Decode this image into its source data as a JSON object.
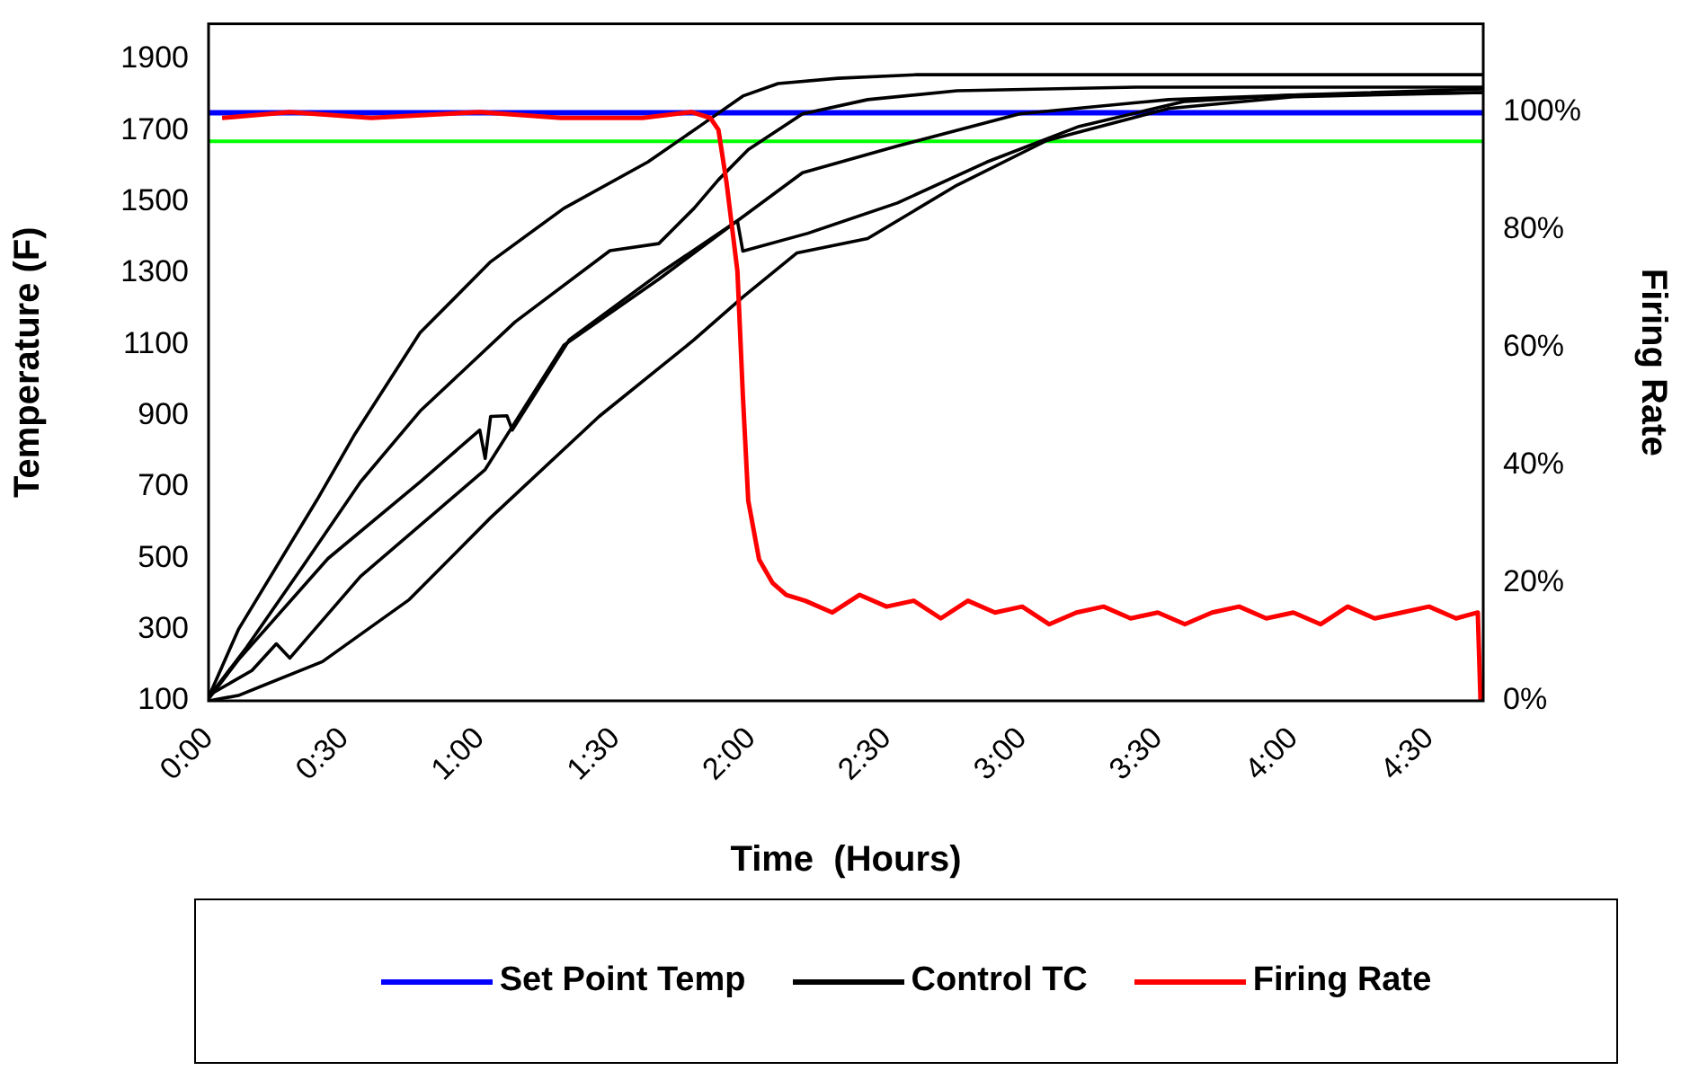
{
  "chart_data": {
    "type": "line",
    "xlabel": "Time  (Hours)",
    "ylabel": "Temperature (F)",
    "y2label": "Firing Rate",
    "xlim": [
      0,
      4.7
    ],
    "ylim": [
      100,
      2000
    ],
    "y2lim": [
      0,
      115
    ],
    "xticks": [
      {
        "value": 0,
        "label": "0:00"
      },
      {
        "value": 0.5,
        "label": "0:30"
      },
      {
        "value": 1,
        "label": "1:00"
      },
      {
        "value": 1.5,
        "label": "1:30"
      },
      {
        "value": 2,
        "label": "2:00"
      },
      {
        "value": 2.5,
        "label": "2:30"
      },
      {
        "value": 3,
        "label": "3:00"
      },
      {
        "value": 3.5,
        "label": "3:30"
      },
      {
        "value": 4,
        "label": "4:00"
      },
      {
        "value": 4.5,
        "label": "4:30"
      }
    ],
    "yticks": [
      100,
      300,
      500,
      700,
      900,
      1100,
      1300,
      1500,
      1700,
      1900
    ],
    "y2ticks": [
      {
        "value": 0,
        "label": "0%"
      },
      {
        "value": 20,
        "label": "20%"
      },
      {
        "value": 40,
        "label": "40%"
      },
      {
        "value": 60,
        "label": "60%"
      },
      {
        "value": 80,
        "label": "80%"
      },
      {
        "value": 100,
        "label": "100%"
      }
    ],
    "legend": "bottom",
    "ref_lines": [
      {
        "axis": "y",
        "value": 1670,
        "color": "#00ff00"
      }
    ],
    "series": [
      {
        "name": "Set Point Temp",
        "color": "#0000ff",
        "x": [
          0,
          4.7
        ],
        "values": [
          1750,
          1750
        ]
      },
      {
        "name": "Control TC",
        "color": "#000000",
        "x": [
          0,
          0.11,
          0.4,
          0.54,
          0.78,
          1.04,
          1.31,
          1.62,
          1.81,
          1.97,
          2.1,
          2.32,
          2.61,
          3.0,
          3.5,
          4.0,
          4.7
        ],
        "values": [
          110,
          300,
          664,
          849,
          1133,
          1332,
          1482,
          1612,
          1712,
          1797,
          1832,
          1847,
          1857,
          1857,
          1857,
          1857,
          1857
        ]
      },
      {
        "color": "#000000",
        "x": [
          0,
          0.14,
          0.35,
          0.56,
          0.78,
          1.13,
          1.48,
          1.66,
          1.79,
          1.88,
          1.99,
          2.19,
          2.43,
          2.76,
          3.42,
          4.0,
          4.7
        ],
        "values": [
          110,
          250,
          480,
          714,
          913,
          1163,
          1363,
          1383,
          1482,
          1562,
          1647,
          1747,
          1787,
          1812,
          1822,
          1822,
          1822
        ]
      },
      {
        "color": "#000000",
        "x": [
          0,
          0.11,
          0.44,
          0.78,
          1.0,
          1.02,
          1.04,
          1.1,
          1.12,
          1.33,
          1.66,
          1.95,
          2.19,
          2.54,
          2.99,
          3.54,
          4.0,
          4.7
        ],
        "values": [
          105,
          215,
          499,
          714,
          860,
          780,
          898,
          900,
          860,
          1113,
          1298,
          1447,
          1582,
          1657,
          1747,
          1787,
          1800,
          1807
        ]
      },
      {
        "color": "#000000",
        "x": [
          0,
          0.16,
          0.25,
          0.3,
          0.56,
          1.02,
          1.31,
          1.66,
          1.95,
          1.97,
          2.21,
          2.54,
          2.87,
          3.21,
          3.6,
          4.0,
          4.7
        ],
        "values": [
          115,
          185,
          260,
          220,
          449,
          749,
          1098,
          1283,
          1447,
          1362,
          1412,
          1497,
          1612,
          1712,
          1782,
          1800,
          1817
        ]
      },
      {
        "color": "#000000",
        "x": [
          0,
          0.11,
          0.42,
          0.74,
          1.04,
          1.44,
          1.79,
          1.97,
          2.17,
          2.43,
          2.76,
          3.09,
          3.54,
          4.0,
          4.7
        ],
        "values": [
          100,
          115,
          210,
          384,
          614,
          898,
          1113,
          1233,
          1357,
          1397,
          1547,
          1672,
          1762,
          1795,
          1807
        ]
      },
      {
        "name": "Firing Rate",
        "color": "#ff0000",
        "axis": "y2",
        "x": [
          0.05,
          0.3,
          0.6,
          1.0,
          1.3,
          1.6,
          1.78,
          1.85,
          1.88,
          1.91,
          1.95,
          1.97,
          1.99,
          2.03,
          2.08,
          2.13,
          2.2,
          2.3,
          2.4,
          2.5,
          2.6,
          2.7,
          2.8,
          2.9,
          3.0,
          3.1,
          3.2,
          3.3,
          3.4,
          3.5,
          3.6,
          3.7,
          3.8,
          3.9,
          4.0,
          4.1,
          4.2,
          4.3,
          4.4,
          4.5,
          4.6,
          4.68,
          4.69
        ],
        "values": [
          99,
          100,
          99,
          100,
          99,
          99,
          100,
          99,
          97,
          88,
          73,
          52,
          34,
          24,
          20,
          18,
          17,
          15,
          18,
          16,
          17,
          14,
          17,
          15,
          16,
          13,
          15,
          16,
          14,
          15,
          13,
          15,
          16,
          14,
          15,
          13,
          16,
          14,
          15,
          16,
          14,
          15,
          0
        ]
      }
    ]
  }
}
